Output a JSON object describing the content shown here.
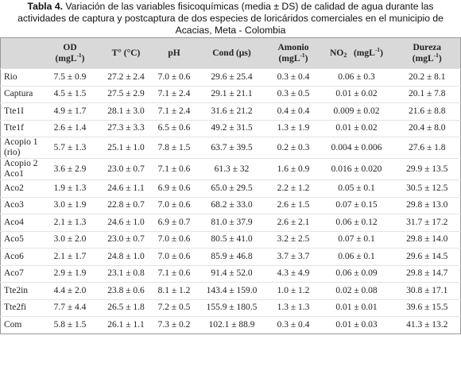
{
  "caption": {
    "label": "Tabla 4.",
    "text": "Variación de las variables fisicoquímicas (media ± DS) de calidad de agua durante las actividades de captura y postcaptura de dos especies de loricáridos comerciales en el municipio de Acacias, Meta - Colombia"
  },
  "table": {
    "columns": [
      {
        "name": "OD",
        "unit": "(mgL",
        "exp": "-1",
        "end": ")"
      },
      {
        "name": "T° (°C)"
      },
      {
        "name": "pH"
      },
      {
        "name": "Cond (µs)"
      },
      {
        "name": "Amonio",
        "unit": "(mgL",
        "exp": "-1",
        "end": ")"
      },
      {
        "name": "NO",
        "sub": "2",
        "unit": "(mgL",
        "exp": "-1",
        "end": ")"
      },
      {
        "name": "Dureza",
        "unit": "(mgL",
        "exp": "-1",
        "end": ")"
      }
    ],
    "rows": [
      {
        "site": "Rio",
        "values": [
          "7.5 ± 0.9",
          "27.2 ± 2.4",
          "7.0 ± 0.6",
          "29.6 ± 25.4",
          "0.3 ± 0.4",
          "0.06 ± 0.3",
          "20.2 ± 8.1"
        ]
      },
      {
        "site": "Captura",
        "values": [
          "4.5 ± 1.5",
          "27.5 ± 2.9",
          "7.1 ± 2.4",
          "29.1 ± 21.1",
          "0.3 ± 0.5",
          "0.01 ± 0.02",
          "20.1 ± 7.8"
        ]
      },
      {
        "site": "Tte1I",
        "values": [
          "4.9 ± 1.7",
          "28.1 ± 3.0",
          "7.1 ± 2.4",
          "31.6 ± 21.2",
          "0.4 ± 0.4",
          "0.009 ± 0.02",
          "21.6 ± 8.8"
        ]
      },
      {
        "site": "Tte1f",
        "values": [
          "2.6 ± 1.4",
          "27.3 ± 3.3",
          "6.5 ± 0.6",
          "49.2 ± 31.5",
          "1.3 ± 1.9",
          "0.01 ± 0.02",
          "20.4 ± 8.0"
        ]
      },
      {
        "site": "Acopio 1 (rio)",
        "values": [
          "5.7 ± 1.3",
          "25.1 ± 1.0",
          "7.8 ± 1.5",
          "63.7 ± 39.5",
          "0.2 ± 0.3",
          "0.004 ± 0.006",
          "27.6 ± 1.8"
        ]
      },
      {
        "site": "Acopio 2 Aco1",
        "values": [
          "3.6 ± 2.9",
          "23.0 ± 0.7",
          "7.1 ± 0.6",
          "61.3 ± 32",
          "1.6 ± 0.9",
          "0.016 ± 0.020",
          "29.9 ± 13.5"
        ]
      },
      {
        "site": "Aco2",
        "values": [
          "1.9 ± 1.3",
          "24.6 ± 1.1",
          "6.9 ± 0.6",
          "65.0 ± 29.5",
          "2.2 ± 1.2",
          "0.05 ± 0.1",
          "30.5 ± 12.5"
        ]
      },
      {
        "site": "Aco3",
        "values": [
          "3.0 ± 1.9",
          "22.8 ± 0.7",
          "7.0 ± 0.6",
          "68.2 ± 33.0",
          "2.6 ± 1.5",
          "0.07 ± 0.15",
          "29.8 ± 13.0"
        ]
      },
      {
        "site": "Aco4",
        "values": [
          "2.1 ± 1.3",
          "24.6 ± 1.0",
          "6.9 ± 0.7",
          "81.0 ± 37.9",
          "2.6 ± 2.1",
          "0.06 ± 0.12",
          "31.7 ± 17.2"
        ]
      },
      {
        "site": "Aco5",
        "values": [
          "3.0 ± 2.0",
          "23.0 ± 0.7",
          "7.0 ± 0.6",
          "80.5 ± 41.0",
          "3.2 ± 2.5",
          "0.07 ± 0.1",
          "29.8 ± 14.0"
        ]
      },
      {
        "site": "Aco6",
        "values": [
          "2.1 ± 1.7",
          "24.8 ± 1.0",
          "7.0 ± 0.6",
          "85.9 ± 46.8",
          "3.7 ± 3.7",
          "0.06 ± 0.1",
          "29.6 ± 14.5"
        ]
      },
      {
        "site": "Aco7",
        "values": [
          "2.9 ± 1.9",
          "23.1 ± 0.8",
          "7.1 ± 0.6",
          "91.4 ± 52.0",
          "4.3 ± 4.9",
          "0.06 ± 0.09",
          "29.8 ± 14.7"
        ]
      },
      {
        "site": "Tte2in",
        "values": [
          "4.4 ± 2.0",
          "23.8 ± 0.6",
          "8.1 ± 1.2",
          "143.4 ± 159.0",
          "1.0 ± 1.2",
          "0.02 ± 0.08",
          "30.8 ± 17.1"
        ]
      },
      {
        "site": "Tte2fi",
        "values": [
          "7.7 ± 4.4",
          "26.5 ± 1.8",
          "7.2 ± 0.5",
          "155.9 ± 180.5",
          "1.3 ± 1.3",
          "0.01 ± 0.01",
          "39.6 ± 15.5"
        ]
      },
      {
        "site": "Com",
        "values": [
          "5.8 ± 1.5",
          "26.1 ± 1.1",
          "7.3 ± 0.2",
          "102.1 ± 88.9",
          "0.3 ± 0.4",
          "0.01 ± 0.03",
          "41.3 ± 13.2"
        ]
      }
    ]
  }
}
